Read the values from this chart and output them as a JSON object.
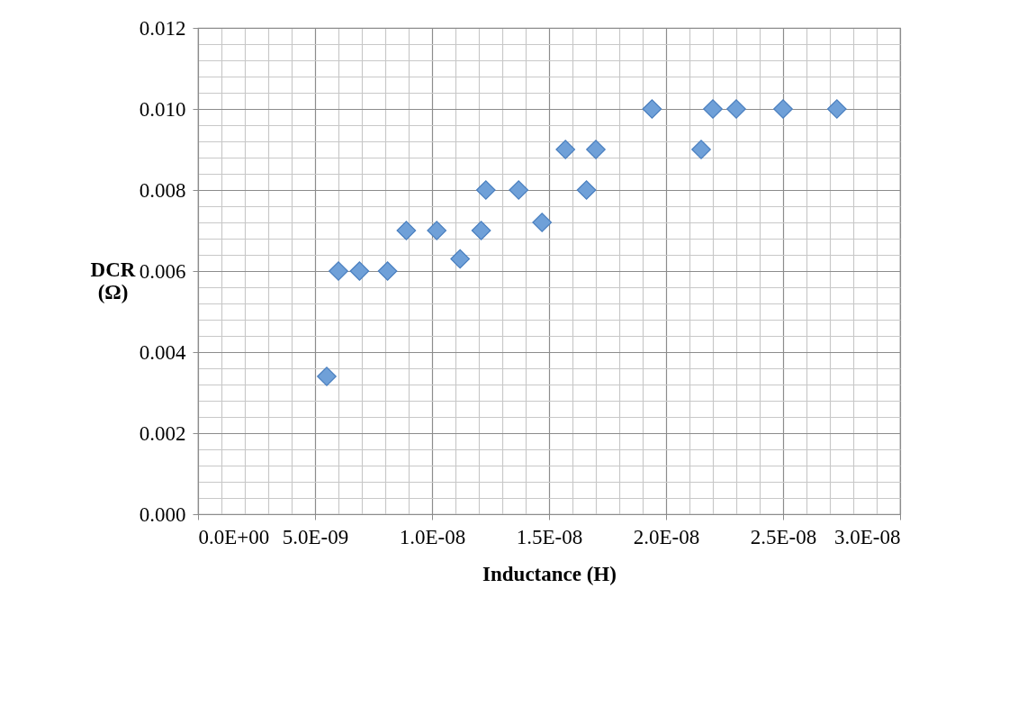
{
  "chart_data": {
    "type": "scatter",
    "xlabel": "Inductance (H)",
    "ylabel": "DCR (Ω)",
    "x": [
      5.5e-09,
      6e-09,
      6.9e-09,
      8.1e-09,
      8.9e-09,
      1.02e-08,
      1.12e-08,
      1.21e-08,
      1.23e-08,
      1.37e-08,
      1.47e-08,
      1.57e-08,
      1.66e-08,
      1.7e-08,
      1.94e-08,
      2.15e-08,
      2.2e-08,
      2.3e-08,
      2.5e-08,
      2.73e-08
    ],
    "series": [
      {
        "color": "#6fa0d8",
        "values": [
          0.0034,
          0.006,
          0.006,
          0.006,
          0.007,
          0.007,
          0.0063,
          0.007,
          0.008,
          0.008,
          0.0072,
          0.009,
          0.008,
          0.009,
          0.01,
          0.009,
          0.01,
          0.01,
          0.01,
          0.01
        ]
      }
    ],
    "marker": "diamond",
    "grid": true,
    "legend": false,
    "xlim": [
      0,
      3e-08
    ],
    "ylim": [
      0,
      0.012
    ],
    "xticks": [
      {
        "value": 0,
        "label": "0.0E+00"
      },
      {
        "value": 1e-09,
        "label": null
      },
      {
        "value": 2e-09,
        "label": null
      },
      {
        "value": 3e-09,
        "label": null
      },
      {
        "value": 4e-09,
        "label": null
      },
      {
        "value": 5e-09,
        "label": "5.0E-09"
      },
      {
        "value": 6e-09,
        "label": null
      },
      {
        "value": 7e-09,
        "label": null
      },
      {
        "value": 8e-09,
        "label": null
      },
      {
        "value": 9e-09,
        "label": null
      },
      {
        "value": 1e-08,
        "label": "1.0E-08"
      },
      {
        "value": 1.1e-08,
        "label": null
      },
      {
        "value": 1.2e-08,
        "label": null
      },
      {
        "value": 1.3e-08,
        "label": null
      },
      {
        "value": 1.4e-08,
        "label": null
      },
      {
        "value": 1.5e-08,
        "label": "1.5E-08"
      },
      {
        "value": 1.6e-08,
        "label": null
      },
      {
        "value": 1.7e-08,
        "label": null
      },
      {
        "value": 1.8e-08,
        "label": null
      },
      {
        "value": 1.9e-08,
        "label": null
      },
      {
        "value": 2e-08,
        "label": "2.0E-08"
      },
      {
        "value": 2.1e-08,
        "label": null
      },
      {
        "value": 2.2e-08,
        "label": null
      },
      {
        "value": 2.3e-08,
        "label": null
      },
      {
        "value": 2.4e-08,
        "label": null
      },
      {
        "value": 2.5e-08,
        "label": "2.5E-08"
      },
      {
        "value": 2.6e-08,
        "label": null
      },
      {
        "value": 2.7e-08,
        "label": null
      },
      {
        "value": 2.8e-08,
        "label": null
      },
      {
        "value": 2.9e-08,
        "label": null
      },
      {
        "value": 3e-08,
        "label": "3.0E-08"
      }
    ],
    "yticks": [
      {
        "value": 0,
        "label": "0.000"
      },
      {
        "value": 0.0004,
        "label": null
      },
      {
        "value": 0.0008,
        "label": null
      },
      {
        "value": 0.0012,
        "label": null
      },
      {
        "value": 0.0016,
        "label": null
      },
      {
        "value": 0.002,
        "label": "0.002"
      },
      {
        "value": 0.0024,
        "label": null
      },
      {
        "value": 0.0028,
        "label": null
      },
      {
        "value": 0.0032,
        "label": null
      },
      {
        "value": 0.0036,
        "label": null
      },
      {
        "value": 0.004,
        "label": "0.004"
      },
      {
        "value": 0.0044,
        "label": null
      },
      {
        "value": 0.0048,
        "label": null
      },
      {
        "value": 0.0052,
        "label": null
      },
      {
        "value": 0.0056,
        "label": null
      },
      {
        "value": 0.006,
        "label": "0.006"
      },
      {
        "value": 0.0064,
        "label": null
      },
      {
        "value": 0.0068,
        "label": null
      },
      {
        "value": 0.0072,
        "label": null
      },
      {
        "value": 0.0076,
        "label": null
      },
      {
        "value": 0.008,
        "label": "0.008"
      },
      {
        "value": 0.0084,
        "label": null
      },
      {
        "value": 0.0088,
        "label": null
      },
      {
        "value": 0.0092,
        "label": null
      },
      {
        "value": 0.0096,
        "label": null
      },
      {
        "value": 0.01,
        "label": "0.010"
      },
      {
        "value": 0.0104,
        "label": null
      },
      {
        "value": 0.0108,
        "label": null
      },
      {
        "value": 0.0112,
        "label": null
      },
      {
        "value": 0.0116,
        "label": null
      },
      {
        "value": 0.012,
        "label": "0.012"
      }
    ]
  }
}
